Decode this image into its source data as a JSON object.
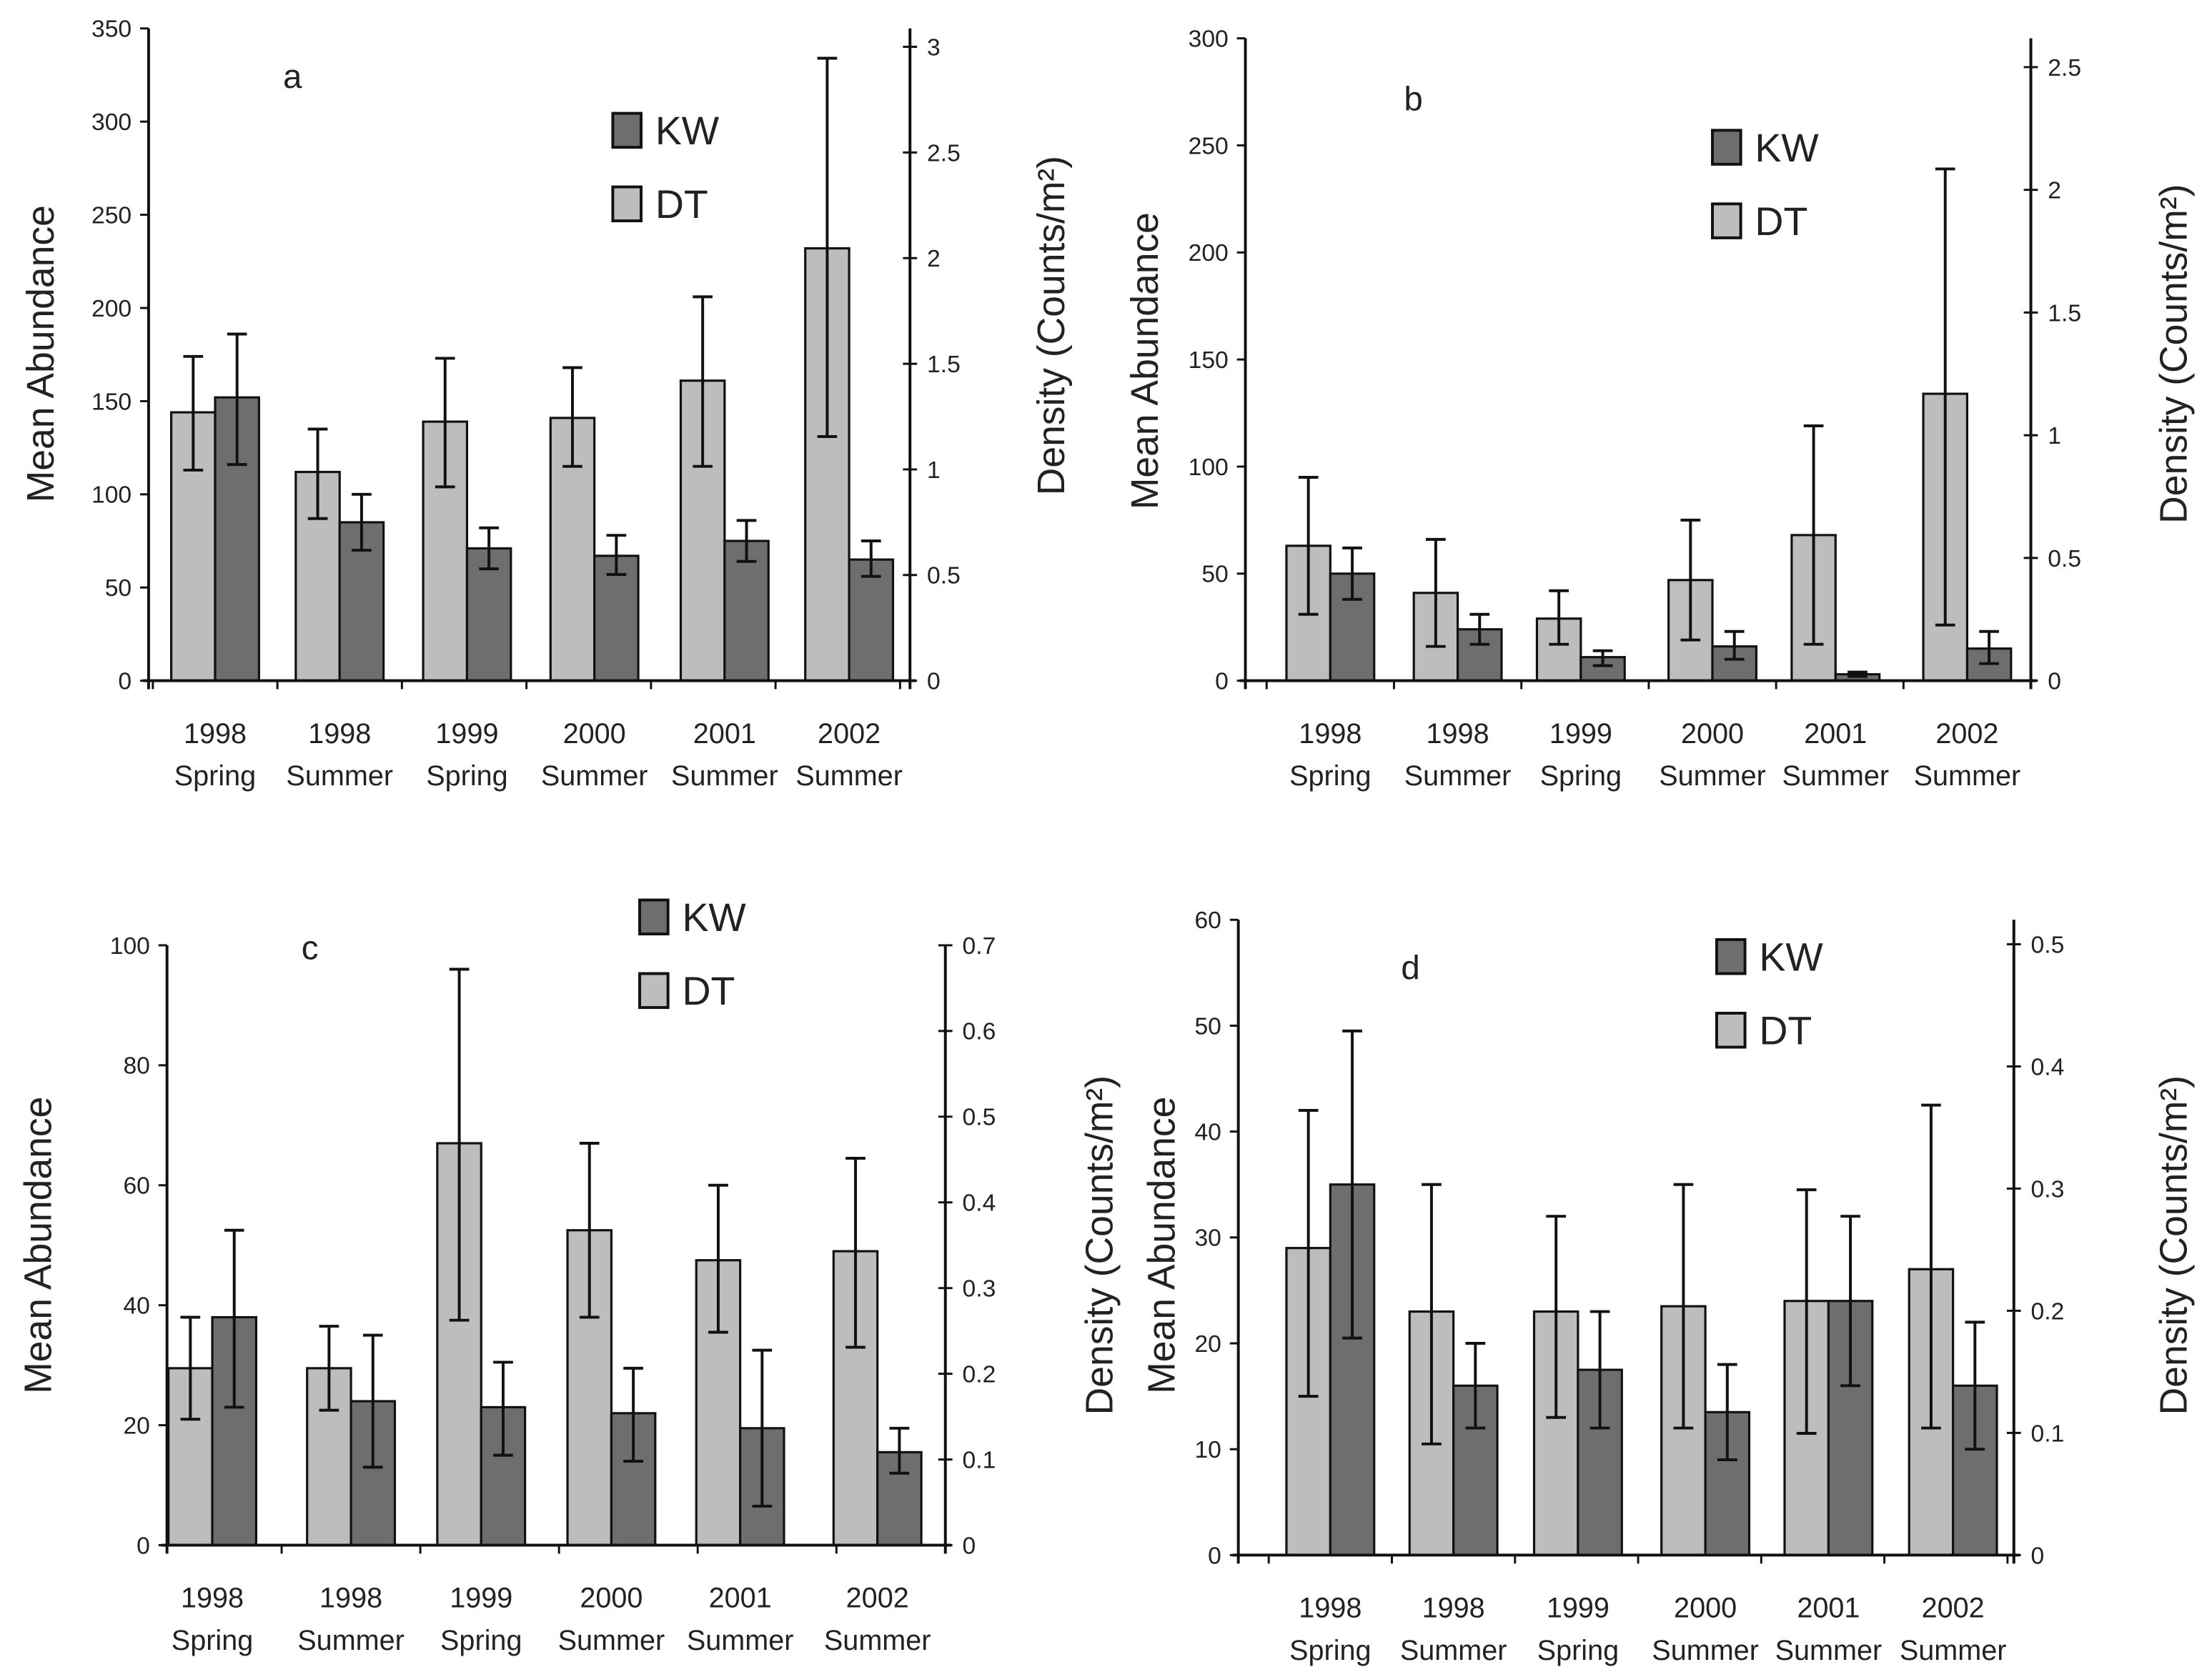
{
  "chart_data": [
    {
      "type": "bar",
      "panel_label": "a",
      "categories": [
        [
          "1998",
          "Spring"
        ],
        [
          "1998",
          "Summer"
        ],
        [
          "1999",
          "Spring"
        ],
        [
          "2000",
          "Summer"
        ],
        [
          "2001",
          "Summer"
        ],
        [
          "2002",
          "Summer"
        ]
      ],
      "ylabel": "Mean Abundance",
      "y2label": "Density (Counts/m²)",
      "ylim": [
        0,
        350
      ],
      "yticks": [
        0,
        50,
        100,
        150,
        200,
        250,
        300,
        350
      ],
      "y2lim": [
        0,
        3
      ],
      "y2ticks": [
        "0",
        "0.5",
        "1",
        "1.5",
        "2",
        "2.5",
        "3"
      ],
      "series": [
        {
          "name": "DT",
          "color": "#bdbdbd",
          "values": [
            144,
            112,
            139,
            141,
            161,
            232
          ],
          "err_low": [
            113,
            87,
            104,
            115,
            115,
            131
          ],
          "err_high": [
            174,
            135,
            173,
            168,
            206,
            334
          ]
        },
        {
          "name": "KW",
          "color": "#6e6e6e",
          "values": [
            152,
            85,
            71,
            67,
            75,
            65
          ],
          "err_low": [
            116,
            70,
            60,
            57,
            64,
            56
          ],
          "err_high": [
            186,
            100,
            82,
            78,
            86,
            75
          ]
        }
      ],
      "legend": [
        "KW",
        "DT"
      ]
    },
    {
      "type": "bar",
      "panel_label": "b",
      "categories": [
        [
          "1998",
          "Spring"
        ],
        [
          "1998",
          "Summer"
        ],
        [
          "1999",
          "Spring"
        ],
        [
          "2000",
          "Summer"
        ],
        [
          "2001",
          "Summer"
        ],
        [
          "2002",
          "Summer"
        ]
      ],
      "ylabel": "Mean Abundance",
      "y2label": "Density (Counts/m²)",
      "ylim": [
        0,
        300
      ],
      "yticks": [
        0,
        50,
        100,
        150,
        200,
        250,
        300
      ],
      "y2lim": [
        0,
        2.6
      ],
      "y2ticks": [
        "0",
        "0.5",
        "1",
        "1.5",
        "2",
        "2.5"
      ],
      "series": [
        {
          "name": "DT",
          "color": "#bdbdbd",
          "values": [
            63,
            41,
            29,
            47,
            68,
            134
          ],
          "err_low": [
            31,
            16,
            17,
            19,
            17,
            26
          ],
          "err_high": [
            95,
            66,
            42,
            75,
            119,
            239
          ]
        },
        {
          "name": "KW",
          "color": "#6e6e6e",
          "values": [
            50,
            24,
            11,
            16,
            3,
            15
          ],
          "err_low": [
            38,
            17,
            7,
            10,
            2,
            8
          ],
          "err_high": [
            62,
            31,
            14,
            23,
            4,
            23
          ]
        }
      ],
      "legend": [
        "KW",
        "DT"
      ]
    },
    {
      "type": "bar",
      "panel_label": "c",
      "categories": [
        [
          "1998",
          "Spring"
        ],
        [
          "1998",
          "Summer"
        ],
        [
          "1999",
          "Spring"
        ],
        [
          "2000",
          "Summer"
        ],
        [
          "2001",
          "Summer"
        ],
        [
          "2002",
          "Summer"
        ]
      ],
      "ylabel": "Mean Abundance",
      "y2label": "Density (Counts/m²)",
      "ylim": [
        0,
        100
      ],
      "yticks": [
        0,
        20,
        40,
        60,
        80,
        100
      ],
      "y2lim": [
        0,
        0.7
      ],
      "y2ticks": [
        "0",
        "0.1",
        "0.2",
        "0.3",
        "0.4",
        "0.5",
        "0.6",
        "0.7"
      ],
      "series": [
        {
          "name": "DT",
          "color": "#bdbdbd",
          "values": [
            29.5,
            29.5,
            67,
            52.5,
            47.5,
            49
          ],
          "err_low": [
            21,
            22.5,
            37.5,
            38,
            35.5,
            33
          ],
          "err_high": [
            38,
            36.5,
            96,
            67,
            60,
            64.5
          ]
        },
        {
          "name": "KW",
          "color": "#6e6e6e",
          "values": [
            38,
            24,
            23,
            22,
            19.5,
            15.5
          ],
          "err_low": [
            23,
            13,
            15,
            14,
            6.5,
            12
          ],
          "err_high": [
            52.5,
            35,
            30.5,
            29.5,
            32.5,
            19.5
          ]
        }
      ],
      "legend": [
        "KW",
        "DT"
      ]
    },
    {
      "type": "bar",
      "panel_label": "d",
      "categories": [
        [
          "1998",
          "Spring"
        ],
        [
          "1998",
          "Summer"
        ],
        [
          "1999",
          "Spring"
        ],
        [
          "2000",
          "Summer"
        ],
        [
          "2001",
          "Summer"
        ],
        [
          "2002",
          "Summer"
        ]
      ],
      "ylabel": "Mean Abundance",
      "y2label": "Density (Counts/m²)",
      "ylim": [
        0,
        60
      ],
      "yticks": [
        0,
        10,
        20,
        30,
        40,
        50,
        60
      ],
      "y2lim": [
        0,
        0.52
      ],
      "y2ticks": [
        "0",
        "0.1",
        "0.2",
        "0.3",
        "0.4",
        "0.5"
      ],
      "series": [
        {
          "name": "DT",
          "color": "#bdbdbd",
          "values": [
            29,
            23,
            23,
            23.5,
            24,
            27
          ],
          "err_low": [
            15,
            10.5,
            13,
            12,
            11.5,
            12
          ],
          "err_high": [
            42,
            35,
            32,
            35,
            34.5,
            42.5
          ]
        },
        {
          "name": "KW",
          "color": "#6e6e6e",
          "values": [
            35,
            16,
            17.5,
            13.5,
            24,
            16
          ],
          "err_low": [
            20.5,
            12,
            12,
            9,
            16,
            10
          ],
          "err_high": [
            49.5,
            20,
            23,
            18,
            32,
            22
          ]
        }
      ],
      "legend": [
        "KW",
        "DT"
      ]
    }
  ]
}
